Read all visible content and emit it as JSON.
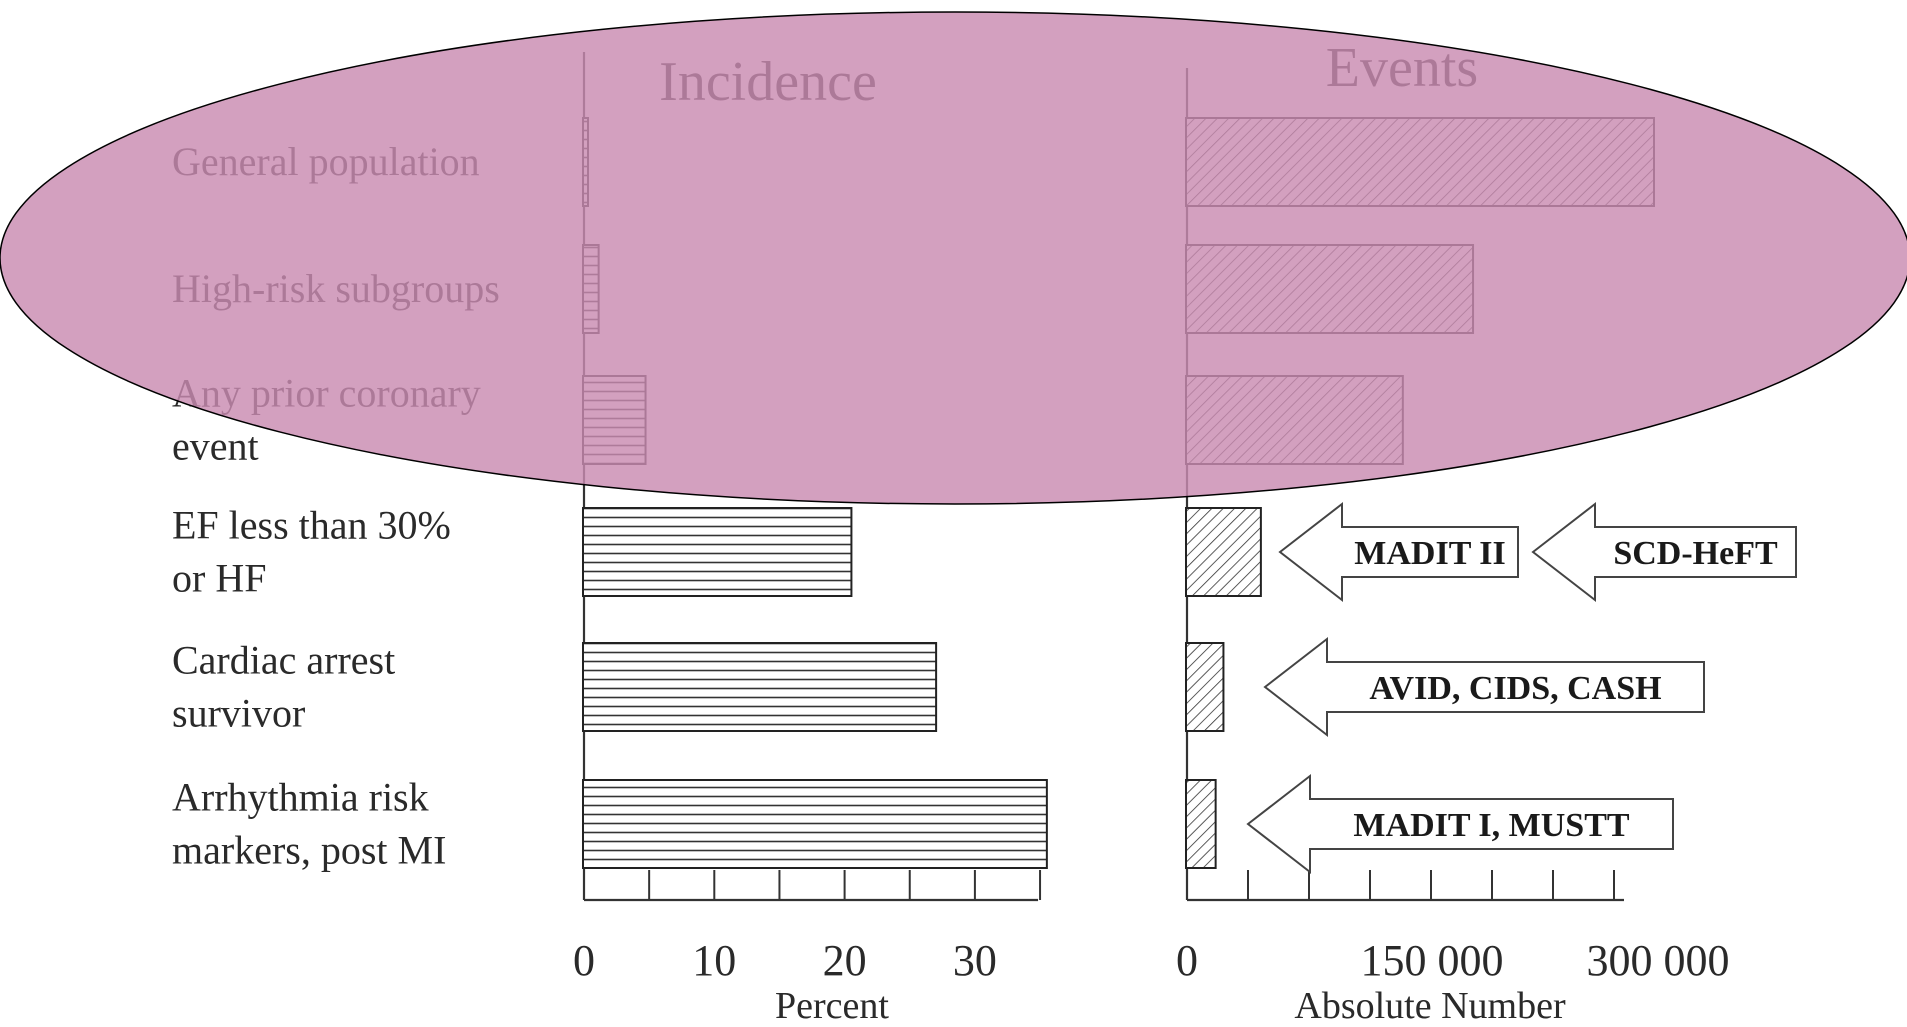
{
  "chart_data": [
    {
      "type": "bar",
      "orientation": "horizontal",
      "title": "Incidence",
      "xlabel": "Percent",
      "xlim": [
        0,
        35
      ],
      "xticks": [
        "0",
        "10",
        "20",
        "30"
      ],
      "categories": [
        [
          "General population"
        ],
        [
          "High-risk subgroups"
        ],
        [
          "Any prior coronary",
          "event"
        ],
        [
          "EF less than 30%",
          "or HF"
        ],
        [
          "Cardiac arrest",
          "survivor"
        ],
        [
          "Arrhythmia risk",
          "markers, post MI"
        ]
      ],
      "values": [
        0.2,
        1.2,
        4.8,
        20.6,
        27.1,
        35.6
      ],
      "pattern": "horizontal-hatch"
    },
    {
      "type": "bar",
      "orientation": "horizontal",
      "title": "Events",
      "xlabel": "Absolute Number",
      "xlim": [
        0,
        300000
      ],
      "xticks": [
        "0",
        "150 000",
        "300 000"
      ],
      "values": [
        300000,
        184000,
        139000,
        48000,
        24000,
        19000
      ],
      "pattern": "diagonal-hatch",
      "annotations": [
        {
          "row": 3,
          "labels": [
            "MADIT II",
            "SCD-HeFT"
          ]
        },
        {
          "row": 4,
          "labels": [
            "AVID, CIDS, CASH"
          ]
        },
        {
          "row": 5,
          "labels": [
            "MADIT I, MUSTT"
          ]
        }
      ]
    }
  ],
  "overlay": {
    "shape": "ellipse",
    "color": "#c98bb1"
  }
}
